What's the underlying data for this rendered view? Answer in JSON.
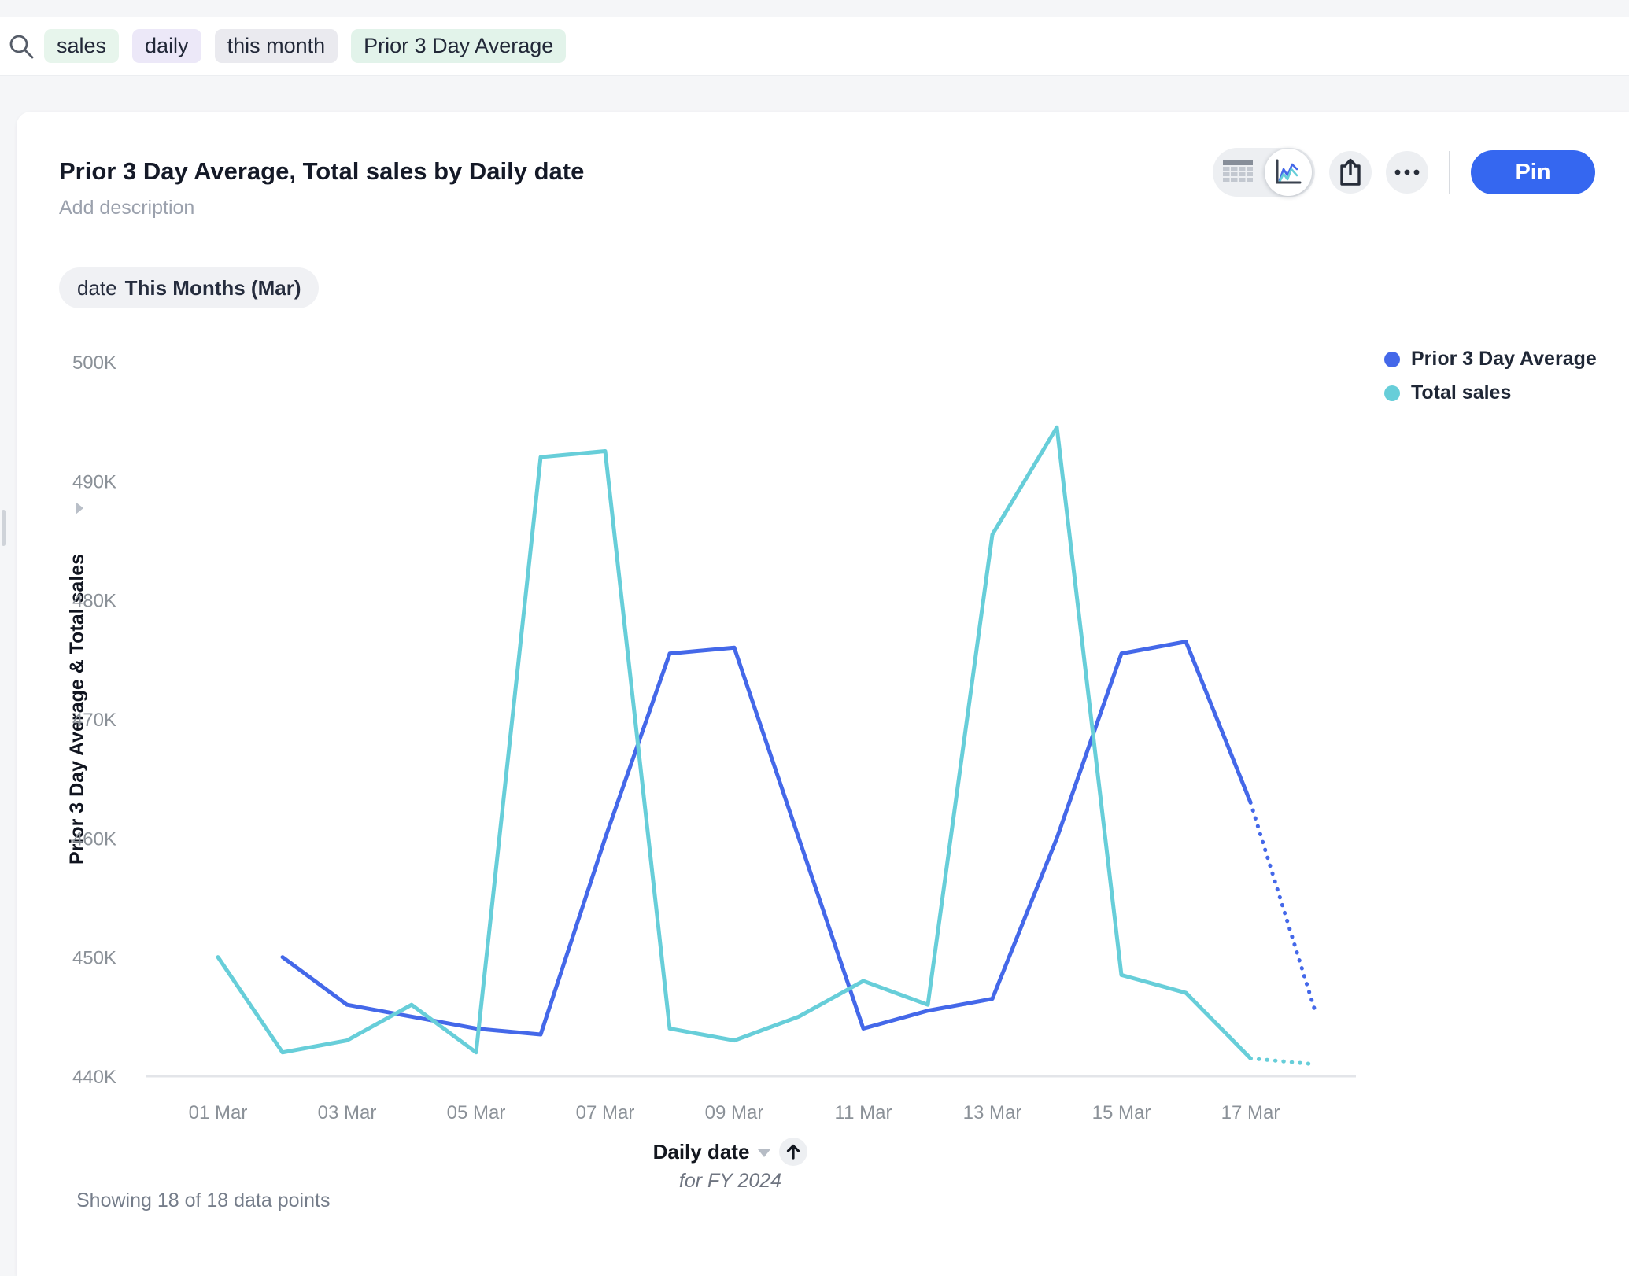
{
  "search_bar": {
    "tokens": [
      {
        "label": "sales",
        "bg": "#e7f5ec"
      },
      {
        "label": "daily",
        "bg": "#ece8f8"
      },
      {
        "label": "this month",
        "bg": "#eaeaef"
      },
      {
        "label": "Prior 3 Day Average",
        "bg": "#e2f3ea"
      }
    ]
  },
  "card": {
    "title": "Prior 3 Day Average, Total sales by Daily date",
    "description_placeholder": "Add description",
    "filter_chip": {
      "field": "date",
      "value": "This Months (Mar)"
    },
    "toolbar": {
      "pin_label": "Pin"
    }
  },
  "colors": {
    "accent_blue": "#3567f0",
    "series_blue": "#4468e9",
    "series_teal": "#67ced9",
    "chip_bg": "#f0f1f4"
  },
  "icons": [
    "search-icon",
    "table-view-icon",
    "chart-view-icon",
    "share-icon",
    "more-icon",
    "collapse-arrow-icon",
    "caret-down-icon",
    "sort-arrow-icon"
  ],
  "chart_data": {
    "type": "line",
    "title": "Prior 3 Day Average, Total sales by Daily date",
    "ylabel": "Prior 3 Day Average & Total sales",
    "xlabel": "Daily date",
    "xlabel_note": "for FY 2024",
    "values_unit": "thousands (K)",
    "ylim_k": [
      440,
      500
    ],
    "grid": false,
    "legend_position": "top-right",
    "y_ticks": [
      {
        "label": "500K",
        "value": 500
      },
      {
        "label": "490K",
        "value": 490
      },
      {
        "label": "480K",
        "value": 480
      },
      {
        "label": "470K",
        "value": 470
      },
      {
        "label": "460K",
        "value": 460
      },
      {
        "label": "450K",
        "value": 450
      },
      {
        "label": "440K",
        "value": 440
      }
    ],
    "x_ticks": [
      {
        "label": "01 Mar",
        "day": 1
      },
      {
        "label": "03 Mar",
        "day": 3
      },
      {
        "label": "05 Mar",
        "day": 5
      },
      {
        "label": "07 Mar",
        "day": 7
      },
      {
        "label": "09 Mar",
        "day": 9
      },
      {
        "label": "11 Mar",
        "day": 11
      },
      {
        "label": "13 Mar",
        "day": 13
      },
      {
        "label": "15 Mar",
        "day": 15
      },
      {
        "label": "17 Mar",
        "day": 17
      }
    ],
    "days_total": 18,
    "series": [
      {
        "name": "Prior 3 Day Average",
        "color": "#4468e9",
        "dotted_last_segment": true,
        "points": [
          {
            "day": 2,
            "value_k": 450
          },
          {
            "day": 3,
            "value_k": 446
          },
          {
            "day": 4,
            "value_k": 445
          },
          {
            "day": 5,
            "value_k": 444
          },
          {
            "day": 6,
            "value_k": 443.5
          },
          {
            "day": 7,
            "value_k": 460
          },
          {
            "day": 8,
            "value_k": 475.5
          },
          {
            "day": 9,
            "value_k": 476
          },
          {
            "day": 10,
            "value_k": 460
          },
          {
            "day": 11,
            "value_k": 444
          },
          {
            "day": 12,
            "value_k": 445.5
          },
          {
            "day": 13,
            "value_k": 446.5
          },
          {
            "day": 14,
            "value_k": 460
          },
          {
            "day": 15,
            "value_k": 475.5
          },
          {
            "day": 16,
            "value_k": 476.5
          },
          {
            "day": 17,
            "value_k": 463
          },
          {
            "day": 18,
            "value_k": 445.5
          }
        ]
      },
      {
        "name": "Total sales",
        "color": "#67ced9",
        "dotted_last_segment": true,
        "points": [
          {
            "day": 1,
            "value_k": 450
          },
          {
            "day": 2,
            "value_k": 442
          },
          {
            "day": 3,
            "value_k": 443
          },
          {
            "day": 4,
            "value_k": 446
          },
          {
            "day": 5,
            "value_k": 442
          },
          {
            "day": 6,
            "value_k": 492
          },
          {
            "day": 7,
            "value_k": 492.5
          },
          {
            "day": 8,
            "value_k": 444
          },
          {
            "day": 9,
            "value_k": 443
          },
          {
            "day": 10,
            "value_k": 445
          },
          {
            "day": 11,
            "value_k": 448
          },
          {
            "day": 12,
            "value_k": 446
          },
          {
            "day": 13,
            "value_k": 485.5
          },
          {
            "day": 14,
            "value_k": 494.5
          },
          {
            "day": 15,
            "value_k": 448.5
          },
          {
            "day": 16,
            "value_k": 447
          },
          {
            "day": 17,
            "value_k": 441.5
          },
          {
            "day": 18,
            "value_k": 441
          }
        ]
      }
    ],
    "footer": "Showing 18 of 18 data points"
  }
}
